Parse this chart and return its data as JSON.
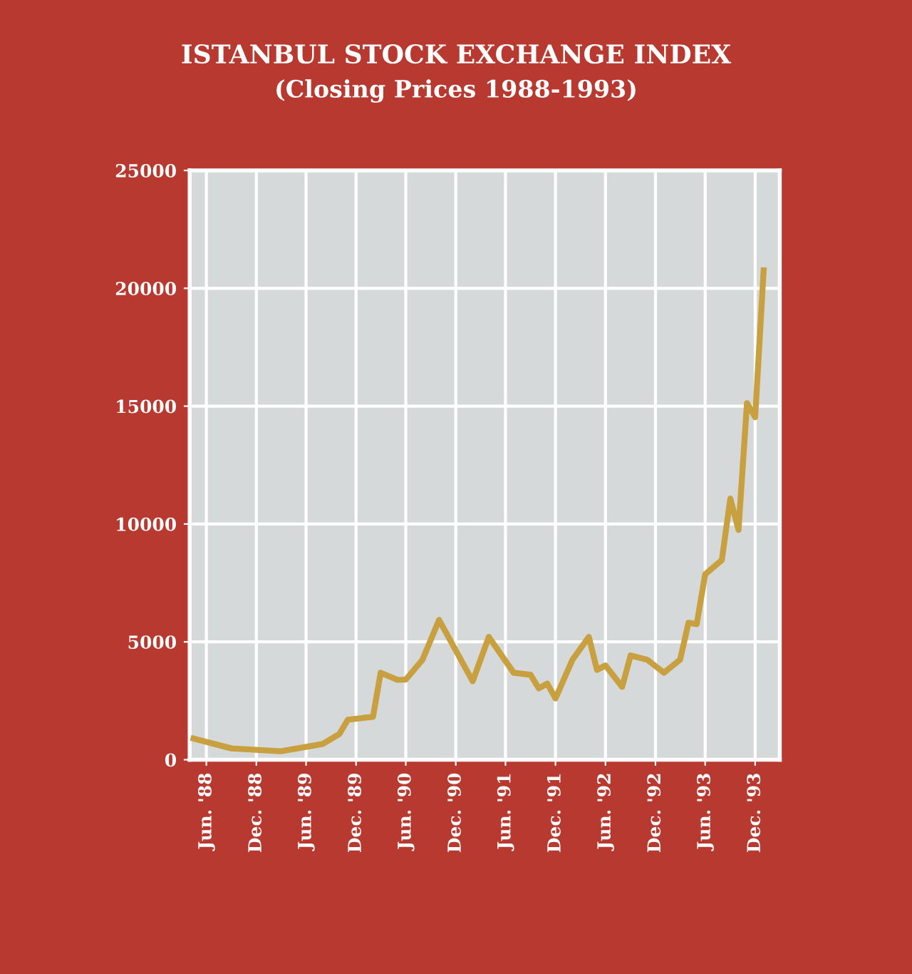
{
  "chart_data": {
    "type": "line",
    "title": "ISTANBUL STOCK EXCHANGE INDEX",
    "subtitle": "(Closing Prices 1988-1993)",
    "x": [
      "1988-04-15",
      "1988-09",
      "1989-03",
      "1989-08",
      "1989-10",
      "1989-11",
      "1990-02",
      "1990-03",
      "1990-05",
      "1990-06",
      "1990-08",
      "1990-10",
      "1991-02",
      "1991-04",
      "1991-07",
      "1991-09",
      "1991-10",
      "1991-11",
      "1991-12",
      "1992-02",
      "1992-04",
      "1992-05",
      "1992-06",
      "1992-08",
      "1992-09",
      "1992-11",
      "1993-01",
      "1993-03",
      "1993-04",
      "1993-05",
      "1993-06",
      "1993-08",
      "1993-09",
      "1993-10",
      "1993-11",
      "1993-12",
      "1994-01"
    ],
    "series": [
      {
        "color": "#c9a040",
        "values": [
          900,
          480,
          360,
          670,
          1090,
          1700,
          1820,
          3690,
          3390,
          3400,
          4240,
          5930,
          3330,
          5210,
          3690,
          3600,
          3030,
          3230,
          2600,
          4240,
          5210,
          3810,
          4000,
          3090,
          4420,
          4240,
          3690,
          4240,
          5810,
          5750,
          7870,
          8470,
          11080,
          9750,
          15130,
          14530,
          20760
        ]
      }
    ],
    "xlim": [
      "1988-04-01",
      "1994-03-01"
    ],
    "xticks": [
      {
        "value": "1988-06",
        "label": "Jun. '88"
      },
      {
        "value": "1988-12",
        "label": "Dec. '88"
      },
      {
        "value": "1989-06",
        "label": "Jun. '89"
      },
      {
        "value": "1989-12",
        "label": "Dec. '89"
      },
      {
        "value": "1990-06",
        "label": "Jun. '90"
      },
      {
        "value": "1990-12",
        "label": "Dec. '90"
      },
      {
        "value": "1991-06",
        "label": "Jun. '91"
      },
      {
        "value": "1991-12",
        "label": "Dec. '91"
      },
      {
        "value": "1992-06",
        "label": "Jun. '92"
      },
      {
        "value": "1992-12",
        "label": "Dec. '92"
      },
      {
        "value": "1993-06",
        "label": "Jun. '93"
      },
      {
        "value": "1993-12",
        "label": "Dec. '93"
      }
    ],
    "ylim": [
      0,
      25000
    ],
    "yticks": [
      0,
      5000,
      10000,
      15000,
      20000,
      25000
    ],
    "grid": true,
    "marker": "none",
    "line_style": "solid"
  }
}
